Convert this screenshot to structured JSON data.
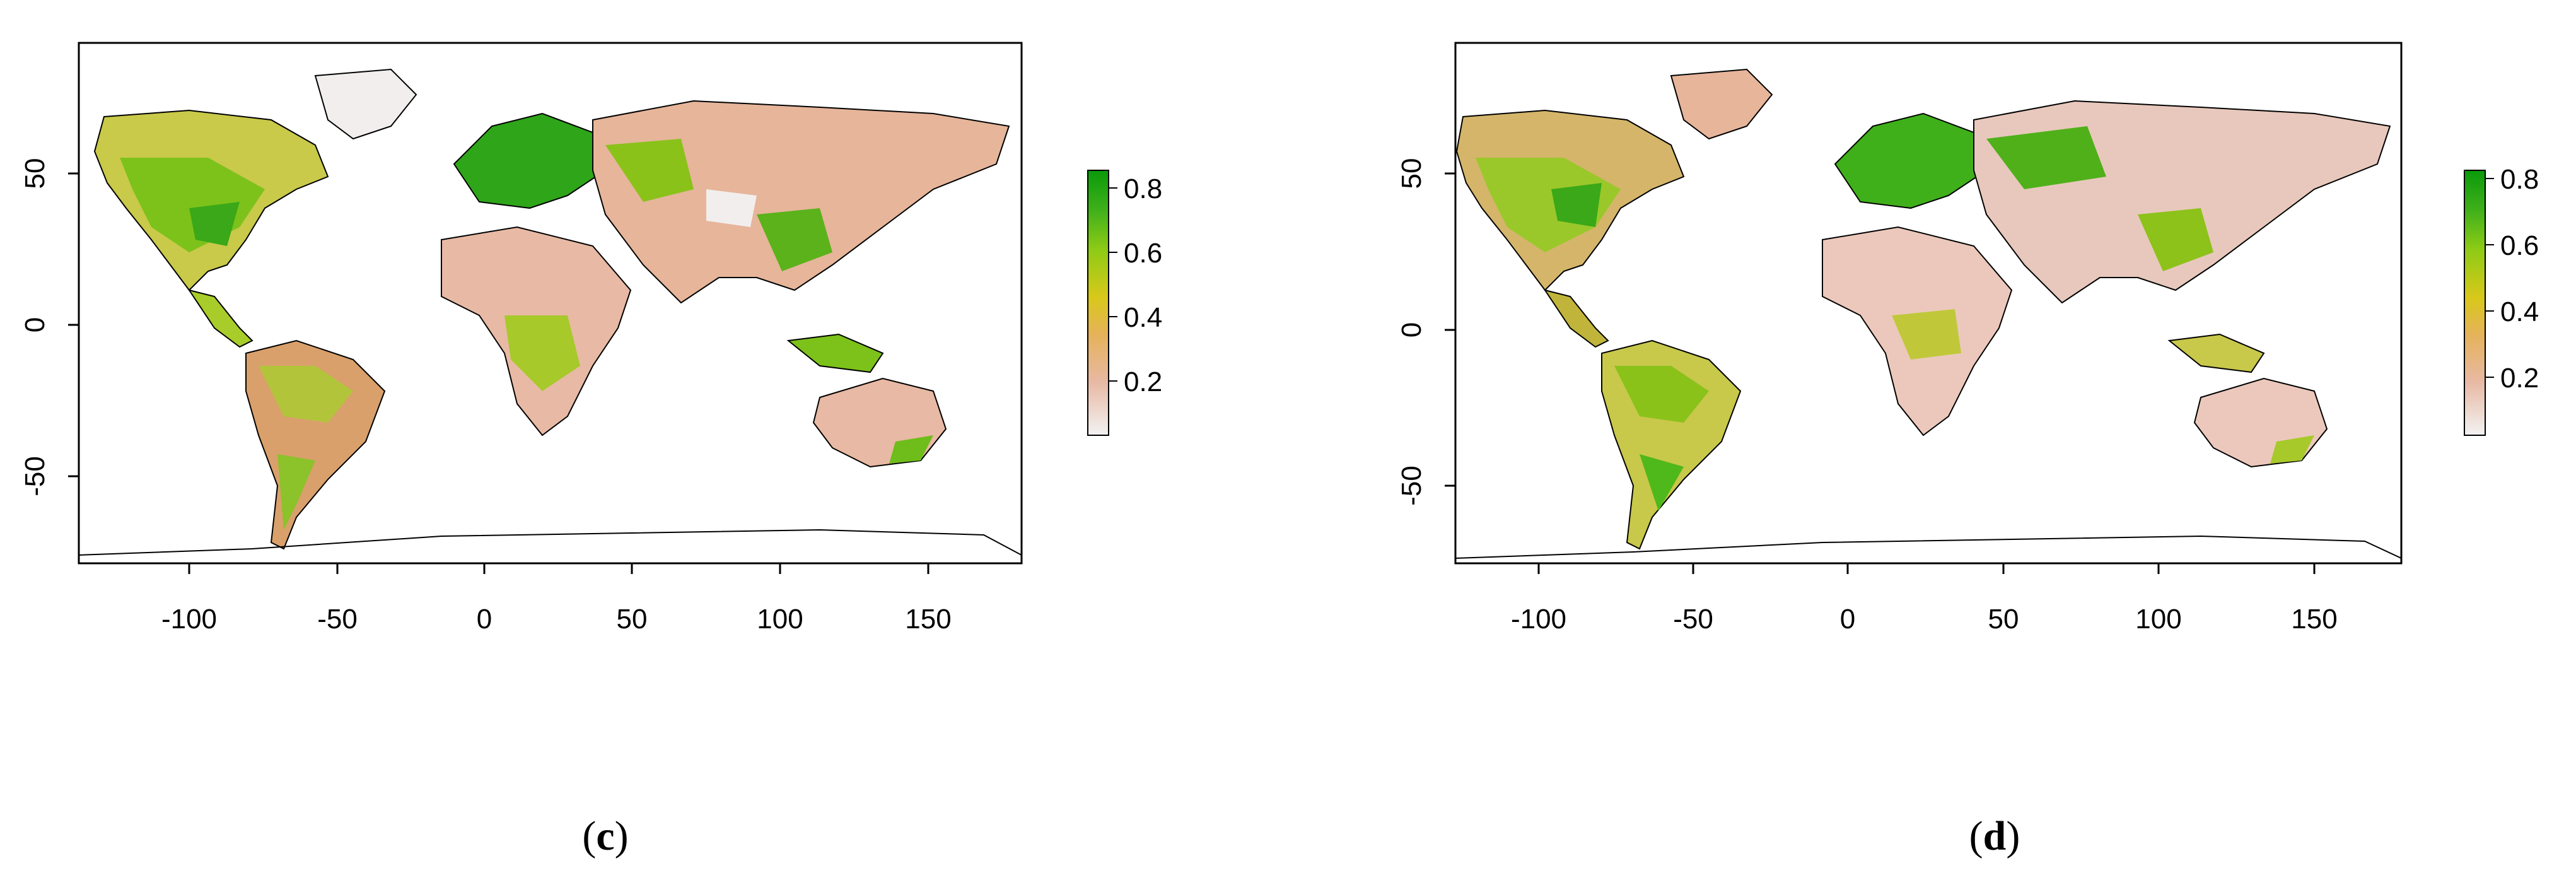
{
  "panels": [
    {
      "id": "c",
      "caption_open": "(",
      "caption_letter": "c",
      "caption_close": ")",
      "map": {
        "lon_range": [
          -140,
          180
        ],
        "lat_range": [
          -80,
          90
        ]
      },
      "x_ticks": [
        -100,
        -50,
        0,
        50,
        100,
        150
      ],
      "y_ticks": [
        -50,
        0,
        50
      ],
      "legend": {
        "ticks": [
          "0.2",
          "0.4",
          "0.6",
          "0.8"
        ],
        "min": 0.05,
        "max": 0.85
      }
    },
    {
      "id": "d",
      "caption_open": "(",
      "caption_letter": "d",
      "caption_close": ")",
      "map": {
        "lon_range": [
          -130,
          175
        ],
        "lat_range": [
          -75,
          90
        ]
      },
      "x_ticks": [
        -100,
        -50,
        0,
        50,
        100,
        150
      ],
      "y_ticks": [
        -50,
        0,
        50
      ],
      "legend": {
        "ticks": [
          "0.2",
          "0.4",
          "0.6",
          "0.8"
        ],
        "min": 0.05,
        "max": 0.85
      }
    }
  ],
  "colormap": [
    "#f2f2f2",
    "#e8b9a4",
    "#e5b25a",
    "#d8c81a",
    "#9bcf17",
    "#4fb81a",
    "#0a9a0a"
  ]
}
